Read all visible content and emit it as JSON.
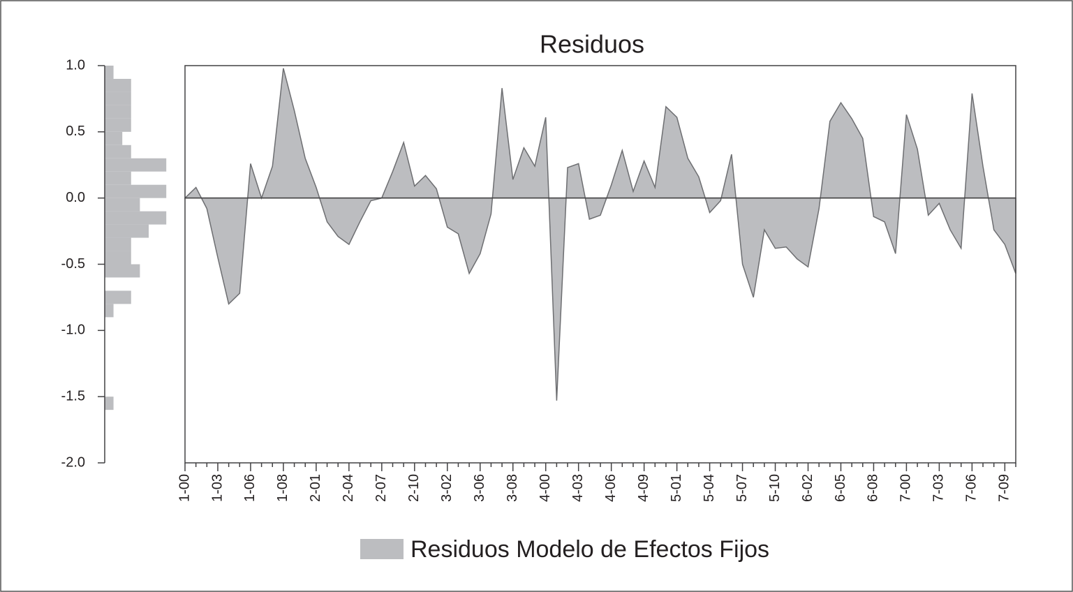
{
  "chart_data": [
    {
      "type": "area",
      "title": "Residuos",
      "categories": [
        "1-00",
        null,
        null,
        "1-03",
        null,
        null,
        "1-06",
        null,
        null,
        "1-08",
        null,
        null,
        "2-01",
        null,
        null,
        "2-04",
        null,
        null,
        "2-07",
        null,
        null,
        "2-10",
        null,
        null,
        "3-02",
        null,
        null,
        "3-06",
        null,
        null,
        "3-08",
        null,
        null,
        "4-00",
        null,
        null,
        "4-03",
        null,
        null,
        "4-06",
        null,
        null,
        "4-09",
        null,
        null,
        "5-01",
        null,
        null,
        "5-04",
        null,
        null,
        "5-07",
        null,
        null,
        "5-10",
        null,
        null,
        "6-02",
        null,
        null,
        "6-05",
        null,
        null,
        "6-08",
        null,
        null,
        "7-00",
        null,
        null,
        "7-03",
        null,
        null,
        "7-06",
        null,
        null,
        "7-09",
        null
      ],
      "series": [
        {
          "name": "Residuos Modelo de Efectos Fijos",
          "color": "#bcbdc0",
          "values": [
            0.0,
            0.08,
            -0.08,
            -0.45,
            -0.8,
            -0.72,
            0.26,
            0.0,
            0.24,
            0.98,
            0.66,
            0.3,
            0.08,
            -0.18,
            -0.29,
            -0.35,
            -0.18,
            -0.02,
            0.0,
            0.2,
            0.42,
            0.09,
            0.17,
            0.07,
            -0.22,
            -0.27,
            -0.57,
            -0.42,
            -0.12,
            0.83,
            0.14,
            0.38,
            0.24,
            0.61,
            -1.53,
            0.23,
            0.26,
            -0.16,
            -0.13,
            0.1,
            0.36,
            0.05,
            0.28,
            0.08,
            0.69,
            0.61,
            0.3,
            0.16,
            -0.11,
            -0.02,
            0.33,
            -0.5,
            -0.75,
            -0.24,
            -0.38,
            -0.37,
            -0.46,
            -0.52,
            -0.08,
            0.58,
            0.72,
            0.6,
            0.45,
            -0.14,
            -0.18,
            -0.42,
            0.63,
            0.37,
            -0.13,
            -0.04,
            -0.24,
            -0.38,
            0.79,
            0.24,
            -0.24,
            -0.35,
            -0.57
          ]
        }
      ],
      "ylim": [
        -2.0,
        1.0
      ]
    },
    {
      "type": "histogram",
      "orientation": "horizontal",
      "color": "#bcbdc0",
      "bins": [
        -1.6,
        -1.5,
        -1.4,
        -1.3,
        -1.2,
        -1.1,
        -1.0,
        -0.9,
        -0.8,
        -0.7,
        -0.6,
        -0.5,
        -0.4,
        -0.3,
        -0.2,
        -0.1,
        0.0,
        0.1,
        0.2,
        0.3,
        0.4,
        0.5,
        0.6,
        0.7,
        0.8,
        0.9,
        1.0
      ],
      "counts": [
        1,
        0,
        0,
        0,
        0,
        0,
        0,
        1,
        3,
        0,
        4,
        3,
        3,
        5,
        7,
        4,
        7,
        3,
        7,
        3,
        2,
        3,
        3,
        3,
        3,
        1
      ],
      "ylim": [
        -2.0,
        1.0
      ],
      "yticks": [
        {
          "value": 1.0,
          "label": "1.0"
        },
        0.5,
        {
          "value": 0.0,
          "label": "0.0"
        },
        -0.5,
        {
          "value": -1.0,
          "label": "-1.0"
        },
        -1.5,
        {
          "value": -2.0,
          "label": "-2.0"
        }
      ]
    }
  ]
}
